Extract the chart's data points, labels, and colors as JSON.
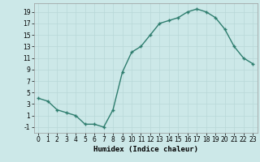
{
  "x": [
    0,
    1,
    2,
    3,
    4,
    5,
    6,
    7,
    8,
    9,
    10,
    11,
    12,
    13,
    14,
    15,
    16,
    17,
    18,
    19,
    20,
    21,
    22,
    23
  ],
  "y": [
    4,
    3.5,
    2,
    1.5,
    1,
    -0.5,
    -0.5,
    -1,
    2,
    8.5,
    12,
    13,
    15,
    17,
    17.5,
    18,
    19,
    19.5,
    19,
    18,
    16,
    13,
    11,
    10
  ],
  "title": "",
  "xlabel": "Humidex (Indice chaleur)",
  "xlim": [
    -0.5,
    23.5
  ],
  "ylim": [
    -2,
    20.5
  ],
  "yticks": [
    -1,
    1,
    3,
    5,
    7,
    9,
    11,
    13,
    15,
    17,
    19
  ],
  "xticks": [
    0,
    1,
    2,
    3,
    4,
    5,
    6,
    7,
    8,
    9,
    10,
    11,
    12,
    13,
    14,
    15,
    16,
    17,
    18,
    19,
    20,
    21,
    22,
    23
  ],
  "line_color": "#2e7d6e",
  "bg_color": "#cce8e8",
  "grid_color": "#b8d8d8",
  "label_fontsize": 6.5,
  "tick_fontsize": 5.5
}
